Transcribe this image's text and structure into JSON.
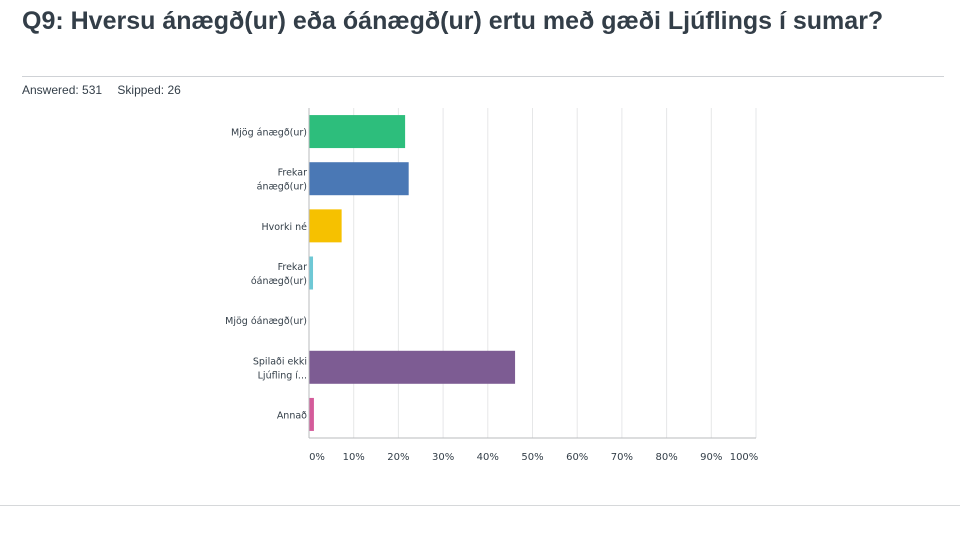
{
  "question": {
    "title": "Q9: Hversu ánægð(ur) eða óánægð(ur) ertu með gæði Ljúflings í sumar?",
    "answered_label": "Answered: 531",
    "skipped_label": "Skipped: 26"
  },
  "chart_data": {
    "type": "bar",
    "orientation": "horizontal",
    "categories": [
      [
        "Mjög ánægð(ur)"
      ],
      [
        "Frekar",
        "ánægð(ur)"
      ],
      [
        "Hvorki né"
      ],
      [
        "Frekar",
        "óánægð(ur)"
      ],
      [
        "Mjög óánægð(ur)"
      ],
      [
        "Spilaði ekki",
        "Ljúfling í..."
      ],
      [
        "Annað"
      ]
    ],
    "values": [
      21.5,
      22.3,
      7.3,
      0.9,
      0,
      46.1,
      1.1
    ],
    "colors": [
      "#2dbe7c",
      "#4a78b5",
      "#f6c100",
      "#6ec8d5",
      "#e9e9e9",
      "#7d5c93",
      "#d45b9a"
    ],
    "x_ticks": [
      "0%",
      "10%",
      "20%",
      "30%",
      "40%",
      "50%",
      "60%",
      "70%",
      "80%",
      "90%",
      "100%"
    ],
    "xlim": [
      0,
      100
    ],
    "grid": true,
    "xlabel": "",
    "ylabel": ""
  }
}
